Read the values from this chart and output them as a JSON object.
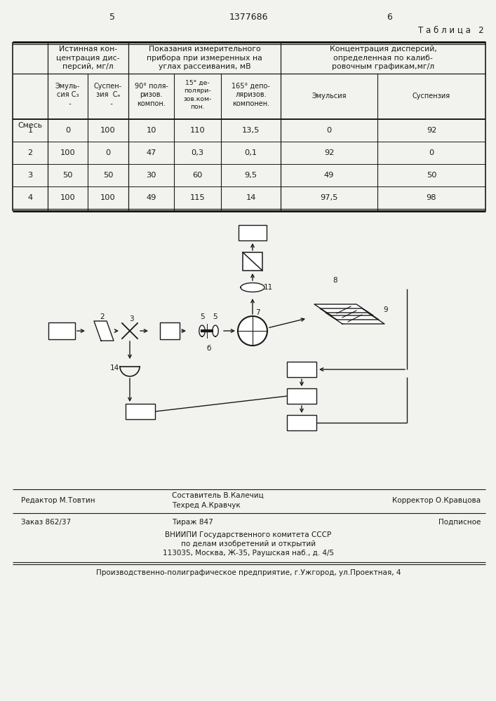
{
  "page_num_left": "5",
  "page_num_center": "1377686",
  "page_num_right": "6",
  "table_title": "Т а б л и ц а   2",
  "data_rows": [
    [
      "1",
      "0",
      "100",
      "10",
      "110",
      "13,5",
      "0",
      "92"
    ],
    [
      "2",
      "100",
      "0",
      "47",
      "0,3",
      "0,1",
      "92",
      "0"
    ],
    [
      "3",
      "50",
      "50",
      "30",
      "60",
      "9,5",
      "49",
      "50"
    ],
    [
      "4",
      "100",
      "100",
      "49",
      "115",
      "14",
      "97,5",
      "98"
    ]
  ],
  "footer_line1_left": "Редактор М.Товтин",
  "footer_line1_center1": "Составитель В.Калечиц",
  "footer_line1_center2": "Техред А.Кравчук",
  "footer_line1_right": "Корректор О.Кравцова",
  "footer_line2_left": "Заказ 862/37",
  "footer_line2_center": "Тираж 847",
  "footer_line2_right": "Подписное",
  "footer_line3a": "ВНИИПИ Государственного комитета СССР",
  "footer_line3b": "по делам изобретений и открытий",
  "footer_line3c": "113035, Москва, Ж-35, Раушская наб., д. 4/5",
  "footer_last": "Производственно-полиграфическое предприятие, г.Ужгород, ул.Проектная, 4",
  "bg_color": "#f2f2ee",
  "line_color": "#1a1a1a",
  "text_color": "#1a1a1a"
}
